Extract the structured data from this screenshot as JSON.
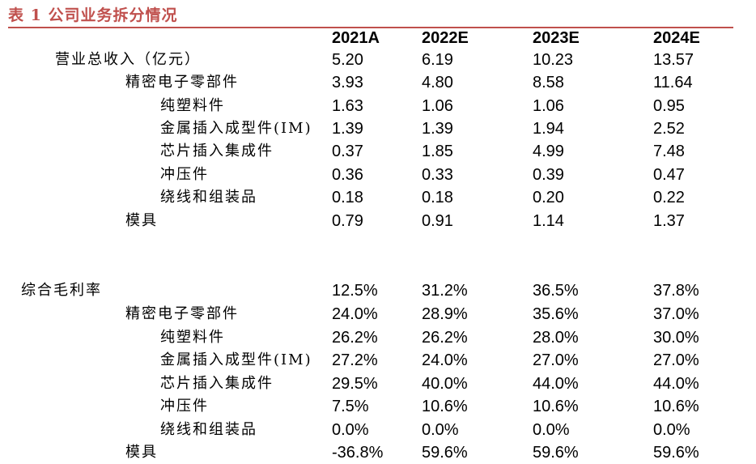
{
  "title": "表 1 公司业务拆分情况",
  "header": [
    "2021A",
    "2022E",
    "2023E",
    "2024E"
  ],
  "revenue_section": {
    "rows": [
      {
        "label": "营业总收入（亿元）",
        "values": [
          "5.20",
          "6.19",
          "10.23",
          "13.57"
        ]
      },
      {
        "label": "精密电子零部件",
        "values": [
          "3.93",
          "4.80",
          "8.58",
          "11.64"
        ]
      },
      {
        "label": "纯塑料件",
        "values": [
          "1.63",
          "1.06",
          "1.06",
          "0.95"
        ]
      },
      {
        "label": "金属插入成型件(IM)",
        "values": [
          "1.39",
          "1.39",
          "1.94",
          "2.52"
        ]
      },
      {
        "label": "芯片插入集成件",
        "values": [
          "0.37",
          "1.85",
          "4.99",
          "7.48"
        ]
      },
      {
        "label": "冲压件",
        "values": [
          "0.36",
          "0.33",
          "0.39",
          "0.47"
        ]
      },
      {
        "label": "绕线和组装品",
        "values": [
          "0.18",
          "0.18",
          "0.20",
          "0.22"
        ]
      },
      {
        "label": "模具",
        "values": [
          "0.79",
          "0.91",
          "1.14",
          "1.37"
        ]
      }
    ]
  },
  "margin_section": {
    "rows": [
      {
        "label": "综合毛利率",
        "values": [
          "12.5%",
          "31.2%",
          "36.5%",
          "37.8%"
        ]
      },
      {
        "label": "精密电子零部件",
        "values": [
          "24.0%",
          "28.9%",
          "35.6%",
          "37.0%"
        ]
      },
      {
        "label": "纯塑料件",
        "values": [
          "26.2%",
          "26.2%",
          "28.0%",
          "30.0%"
        ]
      },
      {
        "label": "金属插入成型件(IM)",
        "values": [
          "27.2%",
          "24.0%",
          "27.0%",
          "27.0%"
        ]
      },
      {
        "label": "芯片插入集成件",
        "values": [
          "29.5%",
          "40.0%",
          "44.0%",
          "44.0%"
        ]
      },
      {
        "label": "冲压件",
        "values": [
          "7.5%",
          "10.6%",
          "10.6%",
          "10.6%"
        ]
      },
      {
        "label": "绕线和组装品",
        "values": [
          "0.0%",
          "0.0%",
          "0.0%",
          "0.0%"
        ]
      },
      {
        "label": "模具",
        "values": [
          "-36.8%",
          "59.6%",
          "59.6%",
          "59.6%"
        ]
      }
    ]
  },
  "colors": {
    "accent": "#c0504d",
    "text": "#000000",
    "background": "#ffffff"
  }
}
